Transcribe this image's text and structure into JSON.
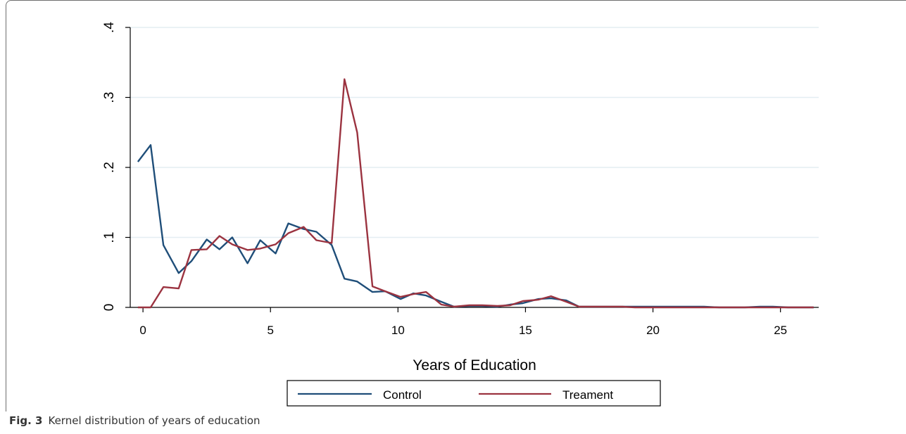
{
  "caption": {
    "label": "Fig. 3",
    "text": "Kernel distribution of years of education"
  },
  "colors": {
    "control": "#1f4e79",
    "treatment": "#9b3340",
    "grid": "#e4eef2",
    "axis": "#000000"
  },
  "chart_data": {
    "type": "line",
    "title": "",
    "xlabel": "Years of Education",
    "ylabel": "",
    "xlim": [
      -0.5,
      26.5
    ],
    "ylim": [
      0,
      0.4
    ],
    "xticks": [
      0,
      5,
      10,
      15,
      20,
      25
    ],
    "xtick_labels": [
      "0",
      "5",
      "10",
      "15",
      "20",
      "25"
    ],
    "yticks": [
      0,
      0.1,
      0.2,
      0.3,
      0.4
    ],
    "ytick_labels": [
      "0",
      ".1",
      ".2",
      ".3",
      ".4"
    ],
    "grid": "horizontal",
    "legend_position": "bottom",
    "series": [
      {
        "name": "Control",
        "color": "#1f4e79",
        "x": [
          -0.2,
          0.3,
          0.8,
          1.4,
          1.9,
          2.5,
          3.0,
          3.5,
          4.1,
          4.6,
          5.2,
          5.7,
          6.3,
          6.8,
          7.4,
          7.9,
          8.4,
          9.0,
          9.5,
          10.1,
          10.6,
          11.1,
          11.7,
          12.2,
          12.8,
          13.3,
          13.9,
          14.4,
          14.9,
          15.5,
          16.0,
          16.6,
          17.1,
          17.7,
          18.2,
          18.8,
          19.3,
          19.8,
          20.4,
          20.9,
          21.5,
          22.0,
          22.6,
          23.1,
          23.6,
          24.2,
          24.7,
          25.3,
          25.8,
          26.3
        ],
        "y": [
          0.208,
          0.232,
          0.089,
          0.049,
          0.066,
          0.097,
          0.083,
          0.1,
          0.063,
          0.096,
          0.077,
          0.12,
          0.112,
          0.108,
          0.089,
          0.041,
          0.037,
          0.022,
          0.023,
          0.012,
          0.02,
          0.017,
          0.008,
          0.001,
          0.002,
          0.002,
          0.001,
          0.004,
          0.006,
          0.012,
          0.013,
          0.01,
          0.001,
          0.001,
          0.001,
          0.001,
          0.001,
          0.001,
          0.001,
          0.001,
          0.001,
          0.001,
          0.0,
          0.0,
          0.0,
          0.001,
          0.001,
          0.0,
          0.0,
          0.0
        ]
      },
      {
        "name": "Treament",
        "color": "#9b3340",
        "x": [
          -0.2,
          0.3,
          0.8,
          1.4,
          1.9,
          2.5,
          3.0,
          3.5,
          4.1,
          4.6,
          5.2,
          5.7,
          6.3,
          6.8,
          7.4,
          7.9,
          8.4,
          9.0,
          9.5,
          10.1,
          10.6,
          11.1,
          11.7,
          12.2,
          12.8,
          13.3,
          13.9,
          14.4,
          14.9,
          15.5,
          16.0,
          16.6,
          17.1,
          17.7,
          18.2,
          18.8,
          19.3,
          19.8,
          20.4,
          20.9,
          21.5,
          22.0,
          22.6,
          23.1,
          23.6,
          24.2,
          24.7,
          25.3,
          25.8,
          26.3
        ],
        "y": [
          0.0,
          0.0,
          0.029,
          0.027,
          0.082,
          0.083,
          0.102,
          0.09,
          0.082,
          0.084,
          0.09,
          0.106,
          0.115,
          0.096,
          0.092,
          0.326,
          0.25,
          0.03,
          0.023,
          0.015,
          0.019,
          0.022,
          0.004,
          0.001,
          0.003,
          0.003,
          0.002,
          0.003,
          0.009,
          0.011,
          0.016,
          0.008,
          0.001,
          0.001,
          0.001,
          0.001,
          0.0,
          0.0,
          0.0,
          0.0,
          0.0,
          0.0,
          0.0,
          0.0,
          0.0,
          0.0,
          0.0,
          0.0,
          0.0,
          0.0
        ]
      }
    ]
  }
}
